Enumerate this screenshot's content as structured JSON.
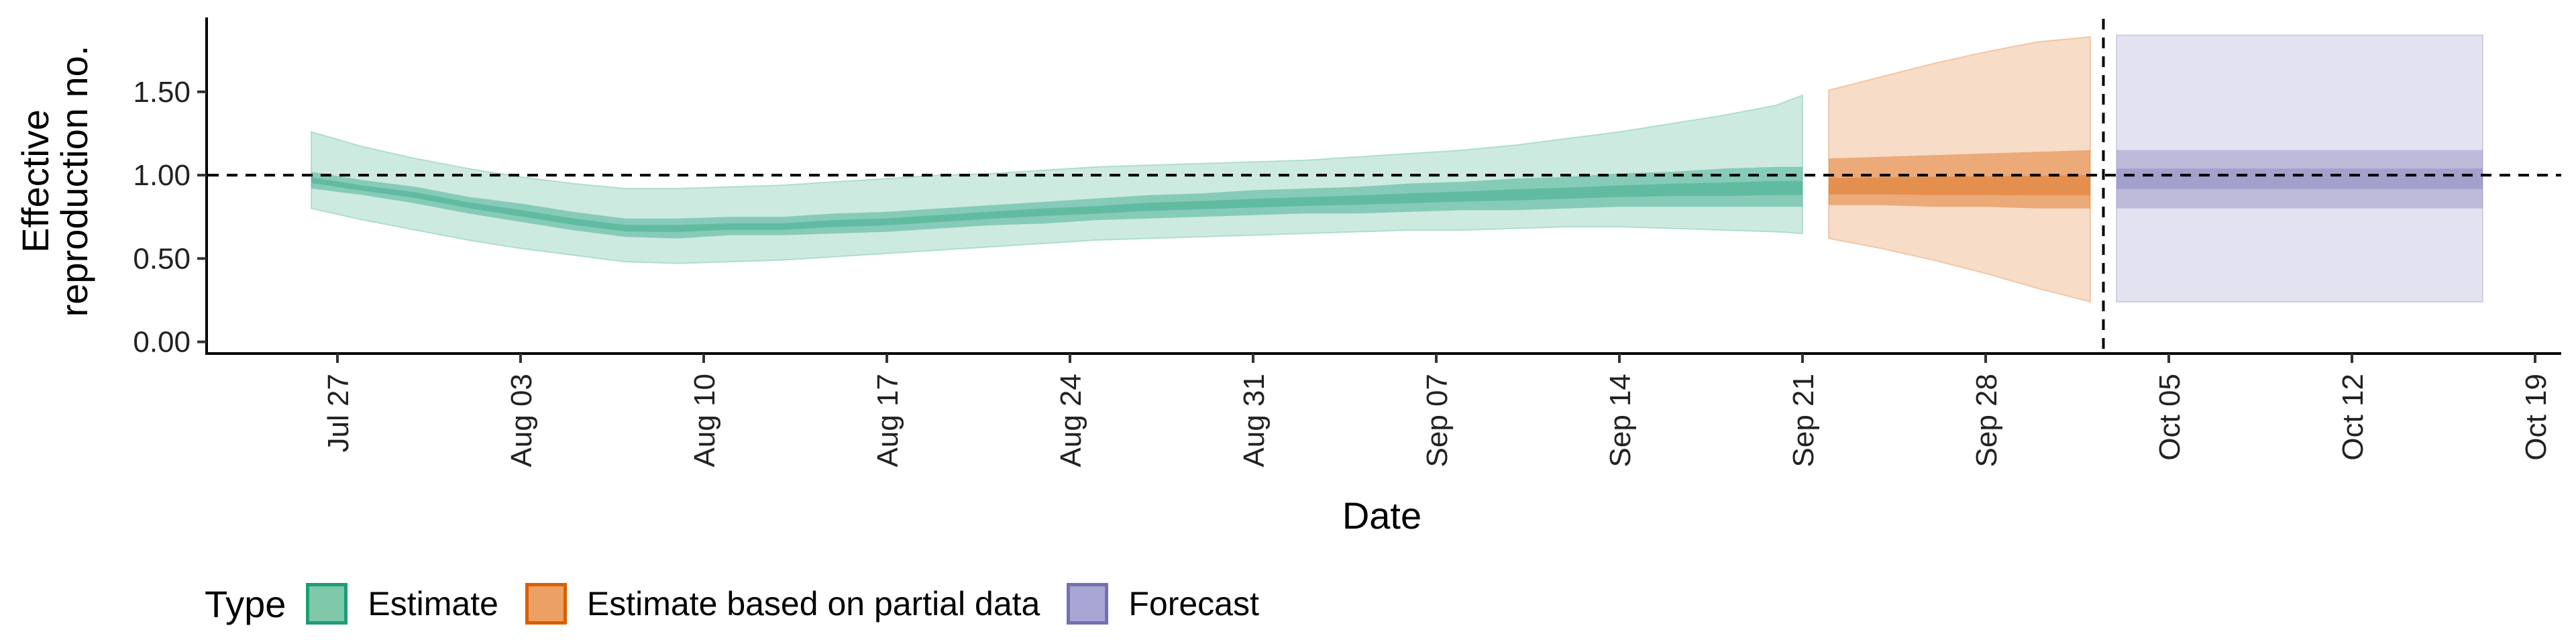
{
  "chart_data": {
    "type": "area",
    "xlabel": "Date",
    "ylabel_lines": [
      "Effective",
      "reproduction no."
    ],
    "x_ticks": [
      "Jul 27",
      "Aug 03",
      "Aug 10",
      "Aug 17",
      "Aug 24",
      "Aug 31",
      "Sep 07",
      "Sep 14",
      "Sep 21",
      "Sep 28",
      "Oct 05",
      "Oct 12",
      "Oct 19"
    ],
    "x_tick_dates": [
      "2020-07-27",
      "2020-08-03",
      "2020-08-10",
      "2020-08-17",
      "2020-08-24",
      "2020-08-31",
      "2020-09-07",
      "2020-09-14",
      "2020-09-21",
      "2020-09-28",
      "2020-10-05",
      "2020-10-12",
      "2020-10-19"
    ],
    "y_ticks": [
      "0.00",
      "0.50",
      "1.00",
      "1.50"
    ],
    "y_tick_values": [
      0,
      0.5,
      1.0,
      1.5
    ],
    "xlim": [
      "2020-07-22",
      "2020-10-20"
    ],
    "ylim": [
      -0.07,
      1.93
    ],
    "reference_line_y": 1.0,
    "forecast_start_line": "2020-10-02",
    "grid": false,
    "legend": {
      "title": "Type",
      "position": "bottom-left",
      "items": [
        {
          "label": "Estimate",
          "fill": "#7fc8aa",
          "stroke": "#1b9e77"
        },
        {
          "label": "Estimate based on partial data",
          "fill": "#eda064",
          "stroke": "#d95f02"
        },
        {
          "label": "Forecast",
          "fill": "#aaa6d4",
          "stroke": "#7570b3"
        }
      ]
    },
    "series": [
      {
        "name": "Estimate",
        "color": "#1b9e77",
        "x": [
          "2020-07-26",
          "2020-07-28",
          "2020-07-30",
          "2020-08-01",
          "2020-08-03",
          "2020-08-05",
          "2020-08-07",
          "2020-08-09",
          "2020-08-11",
          "2020-08-13",
          "2020-08-15",
          "2020-08-17",
          "2020-08-19",
          "2020-08-21",
          "2020-08-23",
          "2020-08-25",
          "2020-08-27",
          "2020-08-29",
          "2020-08-31",
          "2020-09-02",
          "2020-09-04",
          "2020-09-06",
          "2020-09-08",
          "2020-09-10",
          "2020-09-12",
          "2020-09-14",
          "2020-09-16",
          "2020-09-18",
          "2020-09-20",
          "2020-09-21"
        ],
        "median": [
          0.97,
          0.92,
          0.88,
          0.82,
          0.77,
          0.72,
          0.68,
          0.68,
          0.69,
          0.69,
          0.71,
          0.72,
          0.74,
          0.76,
          0.78,
          0.79,
          0.81,
          0.82,
          0.83,
          0.84,
          0.85,
          0.86,
          0.87,
          0.88,
          0.89,
          0.9,
          0.91,
          0.91,
          0.92,
          0.92
        ],
        "lower_50": [
          0.92,
          0.88,
          0.83,
          0.77,
          0.72,
          0.67,
          0.63,
          0.62,
          0.64,
          0.64,
          0.65,
          0.66,
          0.68,
          0.7,
          0.71,
          0.73,
          0.74,
          0.75,
          0.76,
          0.77,
          0.77,
          0.78,
          0.79,
          0.79,
          0.8,
          0.81,
          0.81,
          0.81,
          0.81,
          0.81
        ],
        "upper_50": [
          1.02,
          0.97,
          0.93,
          0.87,
          0.83,
          0.78,
          0.74,
          0.74,
          0.75,
          0.75,
          0.77,
          0.78,
          0.8,
          0.82,
          0.84,
          0.86,
          0.88,
          0.89,
          0.91,
          0.92,
          0.93,
          0.95,
          0.96,
          0.98,
          0.99,
          1.01,
          1.02,
          1.04,
          1.05,
          1.05
        ],
        "lower_90": [
          0.8,
          0.73,
          0.67,
          0.61,
          0.56,
          0.52,
          0.48,
          0.47,
          0.48,
          0.49,
          0.51,
          0.53,
          0.55,
          0.57,
          0.59,
          0.61,
          0.62,
          0.63,
          0.64,
          0.65,
          0.66,
          0.67,
          0.67,
          0.68,
          0.69,
          0.69,
          0.68,
          0.67,
          0.66,
          0.65
        ],
        "upper_90": [
          1.26,
          1.17,
          1.1,
          1.04,
          0.99,
          0.95,
          0.92,
          0.92,
          0.93,
          0.94,
          0.96,
          0.98,
          1.0,
          1.01,
          1.03,
          1.05,
          1.06,
          1.07,
          1.08,
          1.09,
          1.11,
          1.13,
          1.15,
          1.18,
          1.22,
          1.26,
          1.31,
          1.36,
          1.42,
          1.48
        ]
      },
      {
        "name": "Estimate based on partial data",
        "color": "#d95f02",
        "x": [
          "2020-09-22",
          "2020-09-24",
          "2020-09-26",
          "2020-09-28",
          "2020-09-30",
          "2020-10-02"
        ],
        "median": [
          0.92,
          0.92,
          0.92,
          0.92,
          0.92,
          0.92
        ],
        "lower_50": [
          0.82,
          0.82,
          0.81,
          0.81,
          0.8,
          0.8
        ],
        "upper_50": [
          1.1,
          1.11,
          1.12,
          1.13,
          1.14,
          1.15
        ],
        "lower_90": [
          0.62,
          0.56,
          0.49,
          0.41,
          0.32,
          0.24
        ],
        "upper_90": [
          1.51,
          1.59,
          1.67,
          1.74,
          1.8,
          1.83
        ]
      },
      {
        "name": "Forecast",
        "color": "#7570b3",
        "x": [
          "2020-10-03",
          "2020-10-17"
        ],
        "median": [
          0.98,
          0.98
        ],
        "lower_50": [
          0.8,
          0.8
        ],
        "upper_50": [
          1.15,
          1.15
        ],
        "lower_90": [
          0.24,
          0.24
        ],
        "upper_90": [
          1.84,
          1.84
        ]
      }
    ]
  }
}
